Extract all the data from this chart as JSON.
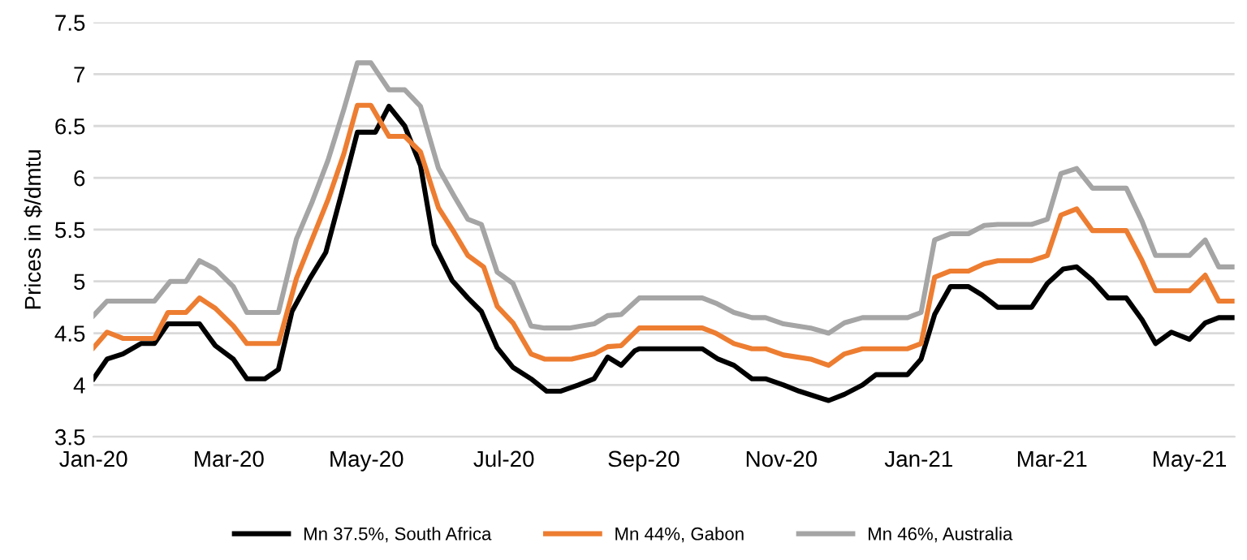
{
  "chart_data": {
    "type": "line",
    "ylabel": "Prices in $/dmtu",
    "xlim": [
      "2020-01-01",
      "2021-05-21"
    ],
    "ylim": [
      3.5,
      7.5
    ],
    "yticks": [
      3.5,
      4,
      4.5,
      5,
      5.5,
      6,
      6.5,
      7,
      7.5
    ],
    "xticks": [
      {
        "value": "2020-01-01",
        "label": "Jan-20"
      },
      {
        "value": "2020-03-01",
        "label": "Mar-20"
      },
      {
        "value": "2020-05-01",
        "label": "May-20"
      },
      {
        "value": "2020-07-01",
        "label": "Jul-20"
      },
      {
        "value": "2020-09-01",
        "label": "Sep-20"
      },
      {
        "value": "2020-11-01",
        "label": "Nov-20"
      },
      {
        "value": "2021-01-01",
        "label": "Jan-21"
      },
      {
        "value": "2021-03-01",
        "label": "Mar-21"
      },
      {
        "value": "2021-05-01",
        "label": "May-21"
      }
    ],
    "grid": "y",
    "legend": "bottom",
    "marker": "none",
    "line_style": "solid",
    "series": [
      {
        "name": "Mn 37.5%, South Africa",
        "color": "#000000",
        "x": [
          "2020-01-01",
          "2020-01-07",
          "2020-01-14",
          "2020-01-22",
          "2020-01-28",
          "2020-02-03",
          "2020-02-17",
          "2020-02-24",
          "2020-03-03",
          "2020-03-09",
          "2020-03-17",
          "2020-03-23",
          "2020-03-29",
          "2020-04-06",
          "2020-04-13",
          "2020-04-20",
          "2020-04-27",
          "2020-05-05",
          "2020-05-11",
          "2020-05-18",
          "2020-05-25",
          "2020-05-31",
          "2020-06-08",
          "2020-06-15",
          "2020-06-21",
          "2020-06-28",
          "2020-07-05",
          "2020-07-13",
          "2020-07-20",
          "2020-07-26",
          "2020-08-03",
          "2020-08-10",
          "2020-08-16",
          "2020-08-22",
          "2020-08-28",
          "2020-08-30",
          "2020-09-27",
          "2020-10-04",
          "2020-10-11",
          "2020-10-19",
          "2020-10-25",
          "2020-11-02",
          "2020-11-09",
          "2020-11-22",
          "2020-11-29",
          "2020-12-07",
          "2020-12-13",
          "2020-12-27",
          "2021-01-02",
          "2021-01-08",
          "2021-01-15",
          "2021-01-23",
          "2021-01-29",
          "2021-02-05",
          "2021-02-20",
          "2021-02-27",
          "2021-03-06",
          "2021-03-12",
          "2021-03-19",
          "2021-03-26",
          "2021-04-03",
          "2021-04-10",
          "2021-04-16",
          "2021-04-23",
          "2021-05-01",
          "2021-05-08",
          "2021-05-14",
          "2021-05-21"
        ],
        "values": [
          4.06,
          4.25,
          4.3,
          4.4,
          4.4,
          4.59,
          4.59,
          4.38,
          4.25,
          4.06,
          4.06,
          4.15,
          4.71,
          5.03,
          5.28,
          5.85,
          6.44,
          6.44,
          6.69,
          6.5,
          6.12,
          5.36,
          5.01,
          4.84,
          4.71,
          4.36,
          4.17,
          4.06,
          3.94,
          3.94,
          4.0,
          4.06,
          4.27,
          4.19,
          4.33,
          4.35,
          4.35,
          4.25,
          4.19,
          4.06,
          4.06,
          4.0,
          3.94,
          3.85,
          3.91,
          4.0,
          4.1,
          4.1,
          4.25,
          4.68,
          4.95,
          4.95,
          4.87,
          4.75,
          4.75,
          4.98,
          5.12,
          5.14,
          5.01,
          4.84,
          4.84,
          4.63,
          4.4,
          4.51,
          4.44,
          4.6,
          4.65,
          4.65
        ]
      },
      {
        "name": "Mn 44%, Gabon",
        "color": "#ed7d31",
        "x": [
          "2020-01-01",
          "2020-01-07",
          "2020-01-14",
          "2020-01-28",
          "2020-02-03",
          "2020-02-11",
          "2020-02-17",
          "2020-02-24",
          "2020-03-03",
          "2020-03-09",
          "2020-03-23",
          "2020-03-31",
          "2020-04-07",
          "2020-04-14",
          "2020-04-21",
          "2020-04-27",
          "2020-05-03",
          "2020-05-11",
          "2020-05-18",
          "2020-05-25",
          "2020-06-02",
          "2020-06-09",
          "2020-06-15",
          "2020-06-22",
          "2020-06-28",
          "2020-07-05",
          "2020-07-13",
          "2020-07-19",
          "2020-07-31",
          "2020-08-10",
          "2020-08-16",
          "2020-08-22",
          "2020-08-30",
          "2020-09-27",
          "2020-10-03",
          "2020-10-11",
          "2020-10-19",
          "2020-10-25",
          "2020-11-02",
          "2020-11-14",
          "2020-11-22",
          "2020-11-29",
          "2020-12-07",
          "2020-12-27",
          "2021-01-02",
          "2021-01-08",
          "2021-01-15",
          "2021-01-23",
          "2021-01-30",
          "2021-02-05",
          "2021-02-20",
          "2021-02-27",
          "2021-03-05",
          "2021-03-12",
          "2021-03-19",
          "2021-04-03",
          "2021-04-10",
          "2021-04-16",
          "2021-05-01",
          "2021-05-08",
          "2021-05-14",
          "2021-05-21"
        ],
        "values": [
          4.36,
          4.51,
          4.45,
          4.45,
          4.7,
          4.7,
          4.84,
          4.74,
          4.57,
          4.4,
          4.4,
          5.03,
          5.41,
          5.79,
          6.23,
          6.7,
          6.7,
          6.4,
          6.4,
          6.25,
          5.71,
          5.47,
          5.25,
          5.14,
          4.76,
          4.6,
          4.3,
          4.25,
          4.25,
          4.3,
          4.37,
          4.38,
          4.55,
          4.55,
          4.5,
          4.4,
          4.35,
          4.35,
          4.29,
          4.25,
          4.19,
          4.3,
          4.35,
          4.35,
          4.4,
          5.04,
          5.1,
          5.1,
          5.17,
          5.2,
          5.2,
          5.25,
          5.64,
          5.7,
          5.49,
          5.49,
          5.2,
          4.91,
          4.91,
          5.06,
          4.81,
          4.81
        ]
      },
      {
        "name": "Mn 46%, Australia",
        "color": "#a5a5a5",
        "x": [
          "2020-01-01",
          "2020-01-07",
          "2020-01-28",
          "2020-02-04",
          "2020-02-11",
          "2020-02-17",
          "2020-02-24",
          "2020-03-03",
          "2020-03-09",
          "2020-03-23",
          "2020-03-31",
          "2020-04-07",
          "2020-04-14",
          "2020-04-21",
          "2020-04-27",
          "2020-05-03",
          "2020-05-11",
          "2020-05-18",
          "2020-05-25",
          "2020-06-02",
          "2020-06-09",
          "2020-06-15",
          "2020-06-21",
          "2020-06-28",
          "2020-07-05",
          "2020-07-13",
          "2020-07-19",
          "2020-07-30",
          "2020-08-10",
          "2020-08-16",
          "2020-08-22",
          "2020-08-30",
          "2020-09-27",
          "2020-10-03",
          "2020-10-11",
          "2020-10-19",
          "2020-10-25",
          "2020-11-02",
          "2020-11-14",
          "2020-11-22",
          "2020-11-29",
          "2020-12-07",
          "2020-12-27",
          "2021-01-02",
          "2021-01-08",
          "2021-01-15",
          "2021-01-23",
          "2021-01-30",
          "2021-02-05",
          "2021-02-20",
          "2021-02-27",
          "2021-03-05",
          "2021-03-12",
          "2021-03-19",
          "2021-04-03",
          "2021-04-10",
          "2021-04-16",
          "2021-05-01",
          "2021-05-08",
          "2021-05-14",
          "2021-05-21"
        ],
        "values": [
          4.67,
          4.81,
          4.81,
          5.0,
          5.0,
          5.2,
          5.12,
          4.95,
          4.7,
          4.7,
          5.41,
          5.77,
          6.17,
          6.66,
          7.11,
          7.11,
          6.85,
          6.85,
          6.69,
          6.09,
          5.82,
          5.6,
          5.55,
          5.09,
          4.98,
          4.57,
          4.55,
          4.55,
          4.59,
          4.67,
          4.68,
          4.84,
          4.84,
          4.79,
          4.7,
          4.65,
          4.65,
          4.59,
          4.55,
          4.5,
          4.6,
          4.65,
          4.65,
          4.7,
          5.4,
          5.46,
          5.46,
          5.54,
          5.55,
          5.55,
          5.6,
          6.04,
          6.09,
          5.9,
          5.9,
          5.58,
          5.25,
          5.25,
          5.4,
          5.14,
          5.14
        ]
      }
    ]
  }
}
